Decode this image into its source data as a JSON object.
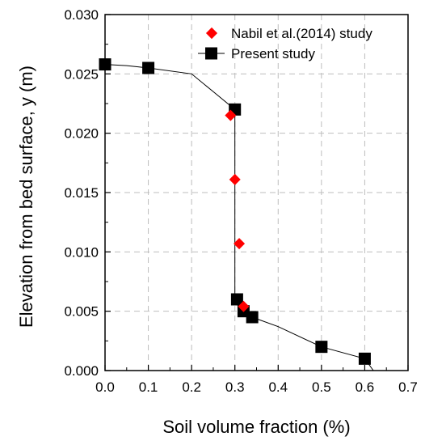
{
  "chart_data": {
    "type": "scatter",
    "title": "",
    "xlabel": "Soil volume fraction (%)",
    "ylabel": "Elevation from bed surface, y (m)",
    "xlim": [
      0.0,
      0.7
    ],
    "ylim": [
      0.0,
      0.03
    ],
    "x_ticks": [
      "0.0",
      "0.1",
      "0.2",
      "0.3",
      "0.4",
      "0.5",
      "0.6",
      "0.7"
    ],
    "y_ticks": [
      "0.000",
      "0.005",
      "0.010",
      "0.015",
      "0.020",
      "0.025",
      "0.030"
    ],
    "grid": true,
    "legend_position": "top-right",
    "series": [
      {
        "name": "Nabil et al.(2014) study",
        "marker": "diamond",
        "color": "#ff0000",
        "points": [
          {
            "x": 0.29,
            "y": 0.0215
          },
          {
            "x": 0.3,
            "y": 0.0161
          },
          {
            "x": 0.31,
            "y": 0.0107
          },
          {
            "x": 0.32,
            "y": 0.0054
          }
        ]
      },
      {
        "name": "Present study",
        "marker": "square",
        "color": "#000000",
        "points": [
          {
            "x": 0.0,
            "y": 0.0258
          },
          {
            "x": 0.1,
            "y": 0.0255
          },
          {
            "x": 0.3,
            "y": 0.022
          },
          {
            "x": 0.305,
            "y": 0.006
          },
          {
            "x": 0.32,
            "y": 0.005
          },
          {
            "x": 0.34,
            "y": 0.0045
          },
          {
            "x": 0.5,
            "y": 0.002
          },
          {
            "x": 0.6,
            "y": 0.001
          }
        ],
        "line": [
          {
            "x": 0.0,
            "y": 0.0258
          },
          {
            "x": 0.05,
            "y": 0.0257
          },
          {
            "x": 0.1,
            "y": 0.0255
          },
          {
            "x": 0.2,
            "y": 0.025
          },
          {
            "x": 0.25,
            "y": 0.0235
          },
          {
            "x": 0.3,
            "y": 0.022
          },
          {
            "x": 0.3,
            "y": 0.006
          },
          {
            "x": 0.32,
            "y": 0.005
          },
          {
            "x": 0.34,
            "y": 0.0045
          },
          {
            "x": 0.4,
            "y": 0.0037
          },
          {
            "x": 0.5,
            "y": 0.002
          },
          {
            "x": 0.6,
            "y": 0.001
          },
          {
            "x": 0.62,
            "y": 0.0
          }
        ]
      }
    ]
  }
}
